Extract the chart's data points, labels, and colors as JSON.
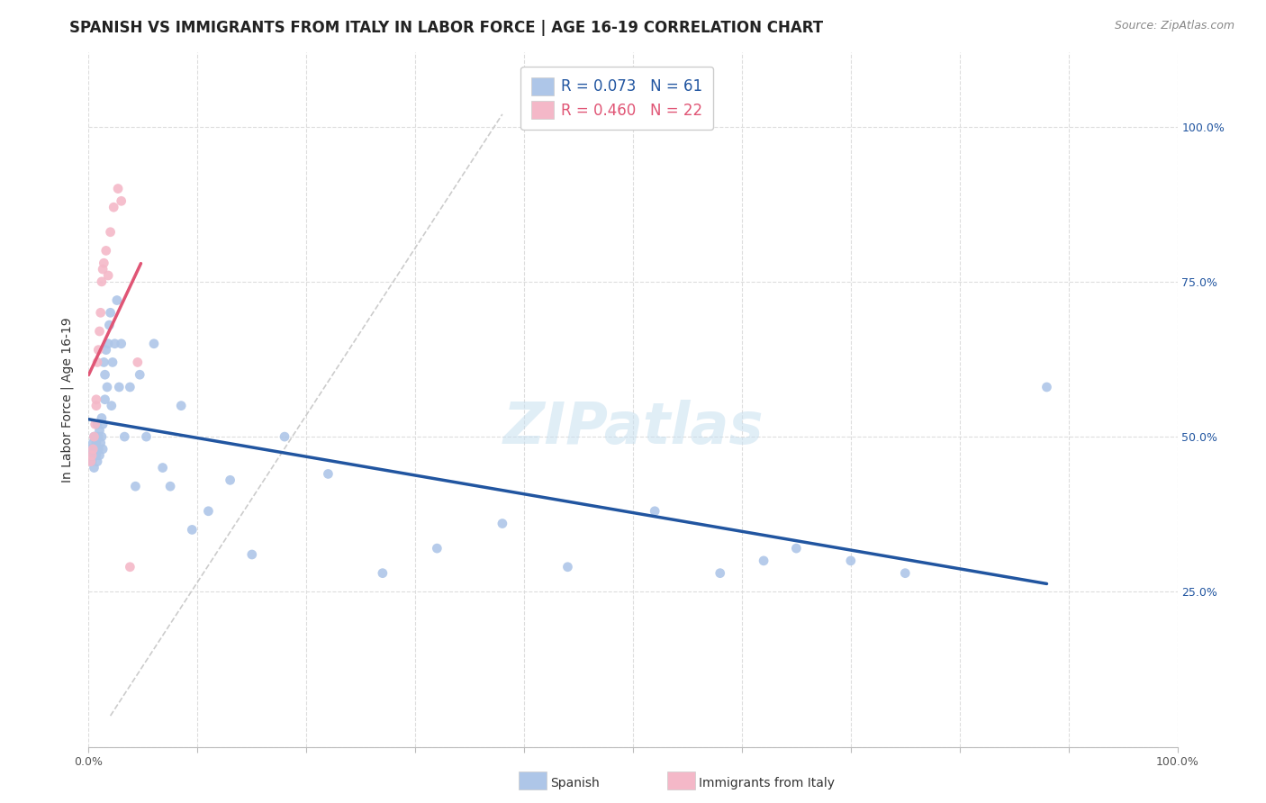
{
  "title": "SPANISH VS IMMIGRANTS FROM ITALY IN LABOR FORCE | AGE 16-19 CORRELATION CHART",
  "source": "Source: ZipAtlas.com",
  "ylabel": "In Labor Force | Age 16-19",
  "xlim": [
    0.0,
    1.0
  ],
  "ylim": [
    0.0,
    1.12
  ],
  "background_color": "#ffffff",
  "grid_color": "#dddddd",
  "spanish_color": "#aec6e8",
  "italy_color": "#f4b8c8",
  "spanish_line_color": "#2155a0",
  "italy_line_color": "#e05575",
  "dash_color": "#cccccc",
  "legend_text_spanish": "R = 0.073   N = 61",
  "legend_text_italy": "R = 0.460   N = 22",
  "legend_label_spanish": "Spanish",
  "legend_label_italy": "Immigrants from Italy",
  "watermark": "ZIPatlas",
  "spanish_color_text": "#2155a0",
  "italy_color_text": "#e05575",
  "spanish_x": [
    0.002,
    0.003,
    0.004,
    0.004,
    0.005,
    0.005,
    0.006,
    0.006,
    0.007,
    0.007,
    0.008,
    0.008,
    0.009,
    0.009,
    0.01,
    0.01,
    0.011,
    0.012,
    0.012,
    0.013,
    0.013,
    0.014,
    0.015,
    0.015,
    0.016,
    0.017,
    0.018,
    0.019,
    0.02,
    0.021,
    0.022,
    0.024,
    0.026,
    0.028,
    0.03,
    0.033,
    0.038,
    0.043,
    0.047,
    0.053,
    0.06,
    0.068,
    0.075,
    0.085,
    0.095,
    0.11,
    0.13,
    0.15,
    0.18,
    0.22,
    0.27,
    0.32,
    0.38,
    0.44,
    0.52,
    0.58,
    0.62,
    0.65,
    0.7,
    0.75,
    0.88
  ],
  "spanish_y": [
    0.48,
    0.46,
    0.49,
    0.47,
    0.5,
    0.45,
    0.48,
    0.5,
    0.47,
    0.49,
    0.46,
    0.52,
    0.48,
    0.5,
    0.47,
    0.51,
    0.49,
    0.5,
    0.53,
    0.48,
    0.52,
    0.62,
    0.56,
    0.6,
    0.64,
    0.58,
    0.65,
    0.68,
    0.7,
    0.55,
    0.62,
    0.65,
    0.72,
    0.58,
    0.65,
    0.5,
    0.58,
    0.42,
    0.6,
    0.5,
    0.65,
    0.45,
    0.42,
    0.55,
    0.35,
    0.38,
    0.43,
    0.31,
    0.5,
    0.44,
    0.28,
    0.32,
    0.36,
    0.29,
    0.38,
    0.28,
    0.3,
    0.32,
    0.3,
    0.28,
    0.58
  ],
  "italy_x": [
    0.002,
    0.003,
    0.004,
    0.005,
    0.006,
    0.007,
    0.007,
    0.008,
    0.009,
    0.01,
    0.011,
    0.012,
    0.013,
    0.014,
    0.016,
    0.018,
    0.02,
    0.023,
    0.027,
    0.03,
    0.038,
    0.045
  ],
  "italy_y": [
    0.46,
    0.47,
    0.48,
    0.5,
    0.52,
    0.56,
    0.55,
    0.62,
    0.64,
    0.67,
    0.7,
    0.75,
    0.77,
    0.78,
    0.8,
    0.76,
    0.83,
    0.87,
    0.9,
    0.88,
    0.29,
    0.62
  ],
  "marker_size": 60,
  "title_fontsize": 12,
  "axis_label_fontsize": 10,
  "tick_fontsize": 9,
  "legend_fontsize": 12,
  "source_fontsize": 9,
  "ytick_positions": [
    0.0,
    0.25,
    0.5,
    0.75,
    1.0
  ],
  "ytick_labels": [
    "",
    "25.0%",
    "50.0%",
    "75.0%",
    "100.0%"
  ],
  "xtick_positions": [
    0.0,
    0.1,
    0.2,
    0.3,
    0.4,
    0.5,
    0.6,
    0.7,
    0.8,
    0.9,
    1.0
  ],
  "xtick_labels": [
    "0.0%",
    "",
    "",
    "",
    "",
    "",
    "",
    "",
    "",
    "",
    "100.0%"
  ]
}
